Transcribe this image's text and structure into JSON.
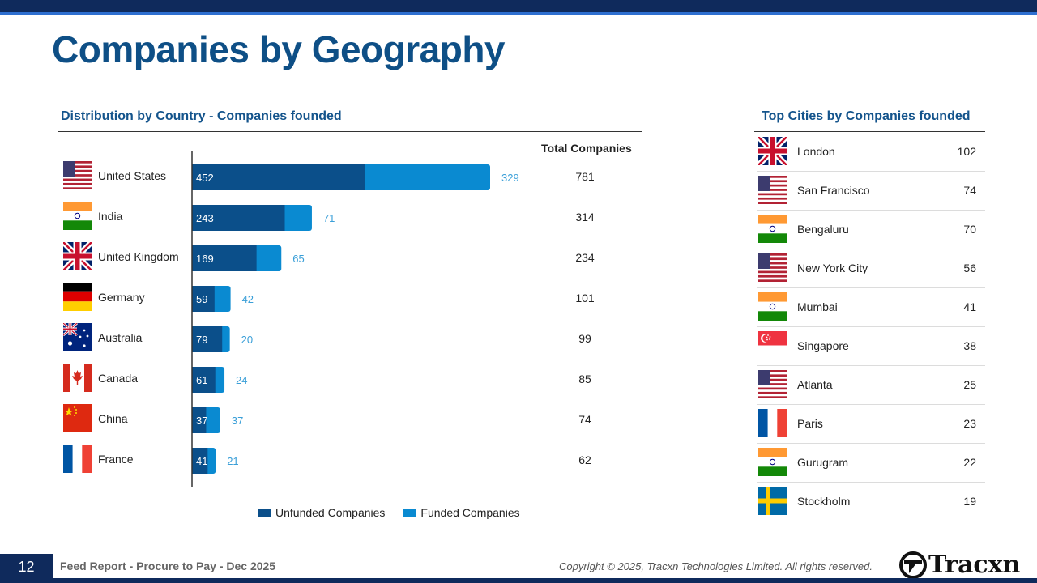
{
  "page": {
    "title": "Companies by Geography",
    "page_number": "12",
    "report_name": "Feed Report - Procure to Pay - Dec 2025",
    "copyright": "Copyright © 2025, Tracxn Technologies Limited. All rights reserved.",
    "brand": "Tracxn"
  },
  "country_section": {
    "title": "Distribution by Country - Companies founded",
    "total_header": "Total Companies",
    "countries": [
      {
        "name": "United States",
        "flag": "us-flag-icon",
        "unfunded": 452,
        "funded": 329,
        "total": "781"
      },
      {
        "name": "India",
        "flag": "india-flag-icon",
        "unfunded": 243,
        "funded": 71,
        "total": "314"
      },
      {
        "name": "United Kingdom",
        "flag": "uk-flag-icon",
        "unfunded": 169,
        "funded": 65,
        "total": "234"
      },
      {
        "name": "Germany",
        "flag": "germany-flag-icon",
        "unfunded": 59,
        "funded": 42,
        "total": "101"
      },
      {
        "name": "Australia",
        "flag": "australia-flag-icon",
        "unfunded": 79,
        "funded": 20,
        "total": "99"
      },
      {
        "name": "Canada",
        "flag": "canada-flag-icon",
        "unfunded": 61,
        "funded": 24,
        "total": "85"
      },
      {
        "name": "China",
        "flag": "china-flag-icon",
        "unfunded": 37,
        "funded": 37,
        "total": "74"
      },
      {
        "name": "France",
        "flag": "france-flag-icon",
        "unfunded": 41,
        "funded": 21,
        "total": "62"
      }
    ]
  },
  "chart_data": {
    "type": "bar",
    "orientation": "horizontal",
    "stacked": true,
    "categories": [
      "United States",
      "India",
      "United Kingdom",
      "Germany",
      "Australia",
      "Canada",
      "China",
      "France"
    ],
    "series": [
      {
        "name": "Unfunded Companies",
        "color": "#0b4f8a",
        "values": [
          452,
          243,
          169,
          59,
          79,
          61,
          37,
          41
        ]
      },
      {
        "name": "Funded Companies",
        "color": "#0a8ad1",
        "values": [
          329,
          71,
          65,
          42,
          20,
          24,
          37,
          21
        ]
      }
    ],
    "totals": [
      781,
      314,
      234,
      101,
      99,
      85,
      74,
      62
    ],
    "title": "Distribution by Country - Companies founded",
    "xlim": [
      0,
      781
    ],
    "grid": false,
    "legend": "bottom"
  },
  "cities_section": {
    "title": "Top Cities by Companies founded",
    "cities": [
      {
        "name": "London",
        "flag": "uk-flag-icon",
        "count": "102"
      },
      {
        "name": "San Francisco",
        "flag": "us-flag-icon",
        "count": "74"
      },
      {
        "name": "Bengaluru",
        "flag": "india-flag-icon",
        "count": "70"
      },
      {
        "name": "New York City",
        "flag": "us-flag-icon",
        "count": "56"
      },
      {
        "name": "Mumbai",
        "flag": "india-flag-icon",
        "count": "41"
      },
      {
        "name": "Singapore",
        "flag": "singapore-flag-icon",
        "count": "38"
      },
      {
        "name": "Atlanta",
        "flag": "us-flag-icon",
        "count": "25"
      },
      {
        "name": "Paris",
        "flag": "france-flag-icon",
        "count": "23"
      },
      {
        "name": "Gurugram",
        "flag": "india-flag-icon",
        "count": "22"
      },
      {
        "name": "Stockholm",
        "flag": "sweden-flag-icon",
        "count": "19"
      }
    ]
  }
}
